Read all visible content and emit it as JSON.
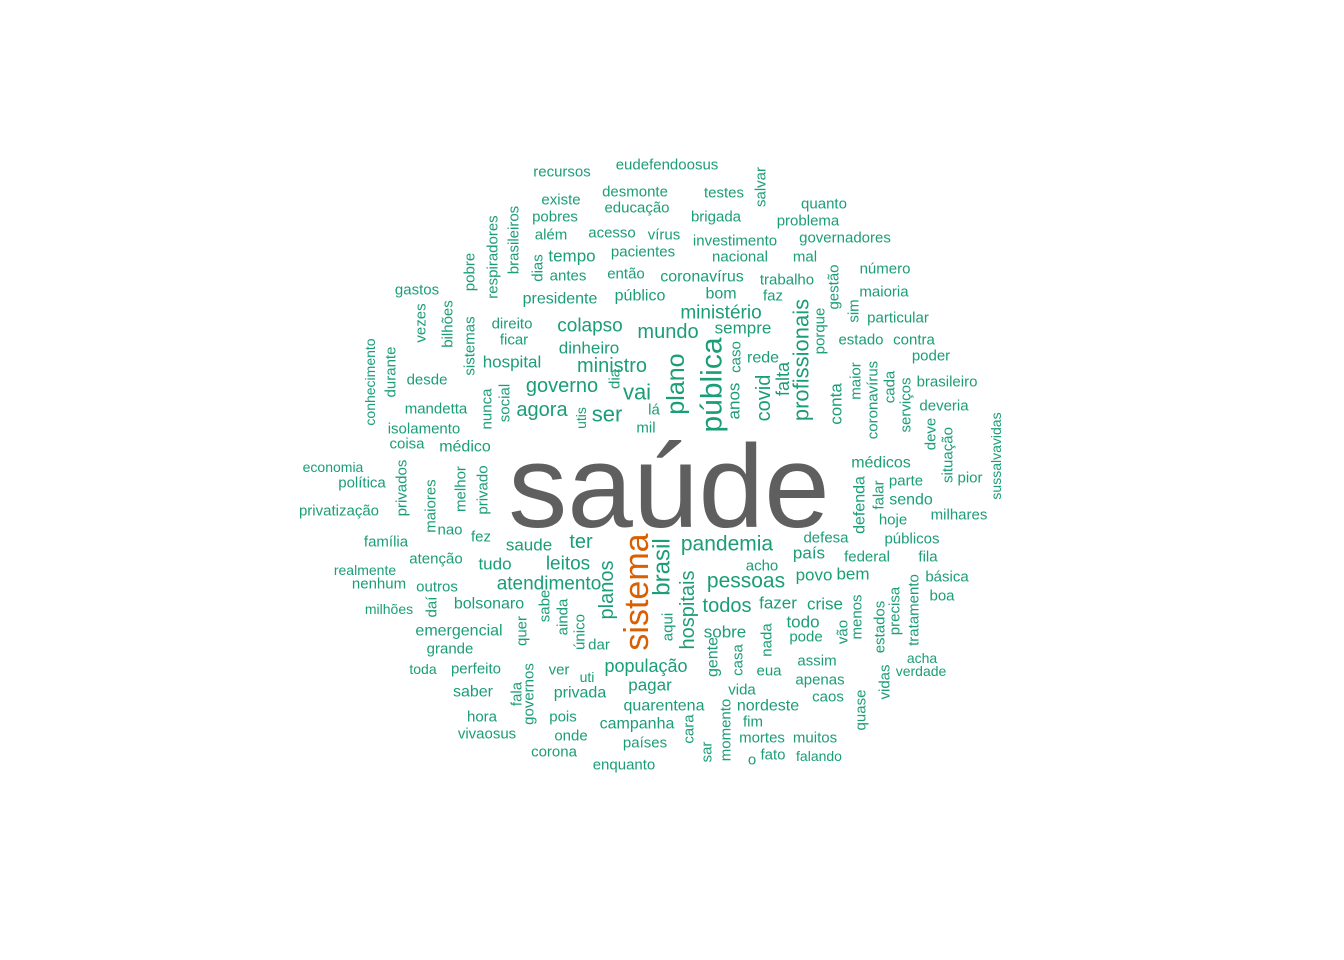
{
  "colors": {
    "primary": "#5f5f5f",
    "secondary": "#d95f02",
    "others": "#1b9e77"
  },
  "words": {
    "main": "saúde",
    "second": "sistema",
    "w": [
      "recursos",
      "eudefendoosus",
      "desmonte",
      "testes",
      "salvar",
      "quanto",
      "existe",
      "educação",
      "pobres",
      "brigada",
      "problema",
      "além",
      "acesso",
      "vírus",
      "investimento",
      "governadores",
      "respiradores",
      "brasileiros",
      "tempo",
      "pacientes",
      "nacional",
      "mal",
      "número",
      "pobre",
      "dias",
      "antes",
      "então",
      "coronavírus",
      "trabalho",
      "gestão",
      "maioria",
      "gastos",
      "presidente",
      "público",
      "bom",
      "faz",
      "sim",
      "particular",
      "vezes",
      "bilhões",
      "direito",
      "colapso",
      "ministério",
      "sempre",
      "porque",
      "estado",
      "contra",
      "conhecimento",
      "durante",
      "ficar",
      "dinheiro",
      "mundo",
      "poder",
      "sistemas",
      "hospital",
      "ministro",
      "caso",
      "rede",
      "desde",
      "governo",
      "dia",
      "brasileiro",
      "mandetta",
      "nunca",
      "social",
      "agora",
      "vai",
      "plano",
      "pública",
      "anos",
      "covid",
      "falta",
      "profissionais",
      "conta",
      "maior",
      "coronavírus",
      "cada",
      "serviços",
      "deveria",
      "isolamento",
      "utis",
      "ser",
      "lá",
      "mil",
      "deve",
      "situação",
      "coisa",
      "médico",
      "sussalvavidas",
      "economia",
      "privados",
      "melhor",
      "privado",
      "médicos",
      "pior",
      "política",
      "maiores",
      "parte",
      "privatização",
      "nao",
      "defenda",
      "falar",
      "sendo",
      "fez",
      "hoje",
      "milhares",
      "família",
      "saude",
      "ter",
      "pandemia",
      "defesa",
      "públicos",
      "atenção",
      "tudo",
      "leitos",
      "brasil",
      "país",
      "federal",
      "fila",
      "realmente",
      "acho",
      "básica",
      "nenhum",
      "outros",
      "atendimento",
      "planos",
      "hospitais",
      "pessoas",
      "povo",
      "bem",
      "boa",
      "milhões",
      "daí",
      "bolsonaro",
      "sabe",
      "ainda",
      "aqui",
      "todos",
      "fazer",
      "crise",
      "menos",
      "estados",
      "precisa",
      "tratamento",
      "emergencial",
      "quer",
      "único",
      "sobre",
      "todo",
      "vão",
      "dar",
      "nada",
      "pode",
      "grande",
      "acha",
      "toda",
      "perfeito",
      "ver",
      "população",
      "gente",
      "casa",
      "eua",
      "assim",
      "verdade",
      "uti",
      "saber",
      "fala",
      "governos",
      "privada",
      "pagar",
      "vida",
      "apenas",
      "caos",
      "vidas",
      "quarentena",
      "nordeste",
      "quase",
      "hora",
      "pois",
      "campanha",
      "fim",
      "vivaosus",
      "onde",
      "cara",
      "momento",
      "mortes",
      "muitos",
      "países",
      "corona",
      "sar",
      "fato",
      "falando",
      "enquanto",
      "o"
    ]
  }
}
